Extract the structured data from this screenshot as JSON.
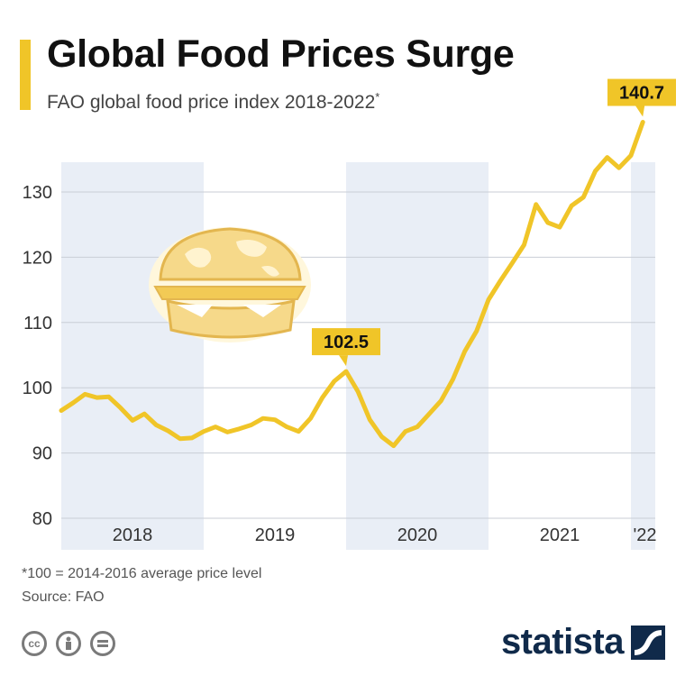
{
  "header": {
    "title": "Global Food Prices Surge",
    "subtitle": "FAO global food price index 2018-2022",
    "subtitle_mark": "*"
  },
  "footer": {
    "footnote": "*100 = 2014-2016 average price level",
    "source": "Source: FAO",
    "license_icons": [
      "cc-icon",
      "attribution-icon",
      "no-derivatives-icon"
    ],
    "brand": "statista"
  },
  "colors": {
    "line": "#f0c528",
    "band": "#e9eef6",
    "grid": "#c9ced6",
    "brand": "#102a4a"
  },
  "chart_data": {
    "type": "line",
    "title": "Global Food Prices Surge",
    "subtitle": "FAO global food price index 2018-2022*",
    "xlabel": "",
    "ylabel": "",
    "ylim": [
      80,
      145
    ],
    "y_ticks": [
      80,
      90,
      100,
      110,
      120,
      130
    ],
    "grid": true,
    "legend": "none",
    "x_labels": [
      "2018",
      "2019",
      "2020",
      "2021",
      "'22"
    ],
    "shaded_years": [
      "2018",
      "2020",
      "'22"
    ],
    "x": [
      "2018-01",
      "2018-02",
      "2018-03",
      "2018-04",
      "2018-05",
      "2018-06",
      "2018-07",
      "2018-08",
      "2018-09",
      "2018-10",
      "2018-11",
      "2018-12",
      "2019-01",
      "2019-02",
      "2019-03",
      "2019-04",
      "2019-05",
      "2019-06",
      "2019-07",
      "2019-08",
      "2019-09",
      "2019-10",
      "2019-11",
      "2019-12",
      "2020-01",
      "2020-02",
      "2020-03",
      "2020-04",
      "2020-05",
      "2020-06",
      "2020-07",
      "2020-08",
      "2020-09",
      "2020-10",
      "2020-11",
      "2020-12",
      "2021-01",
      "2021-02",
      "2021-03",
      "2021-04",
      "2021-05",
      "2021-06",
      "2021-07",
      "2021-08",
      "2021-09",
      "2021-10",
      "2021-11",
      "2021-12",
      "2022-01",
      "2022-02"
    ],
    "series": [
      {
        "values": [
          96.5,
          97.7,
          99.0,
          98.5,
          98.6,
          96.9,
          95.0,
          96.0,
          94.3,
          93.4,
          92.2,
          92.3,
          93.3,
          94.0,
          93.2,
          93.7,
          94.3,
          95.3,
          95.1,
          94.0,
          93.3,
          95.3,
          98.5,
          101.0,
          102.5,
          99.4,
          95.1,
          92.5,
          91.1,
          93.3,
          94.0,
          96.0,
          98.0,
          101.3,
          105.6,
          108.7,
          113.5,
          116.4,
          119.1,
          121.9,
          128.1,
          125.3,
          124.6,
          127.9,
          129.2,
          133.2,
          135.3,
          133.7,
          135.6,
          140.7
        ]
      }
    ],
    "annotations": [
      {
        "x": "2020-01",
        "value": 102.5,
        "label": "102.5"
      },
      {
        "x": "2022-02",
        "value": 140.7,
        "label": "140.7"
      }
    ]
  }
}
